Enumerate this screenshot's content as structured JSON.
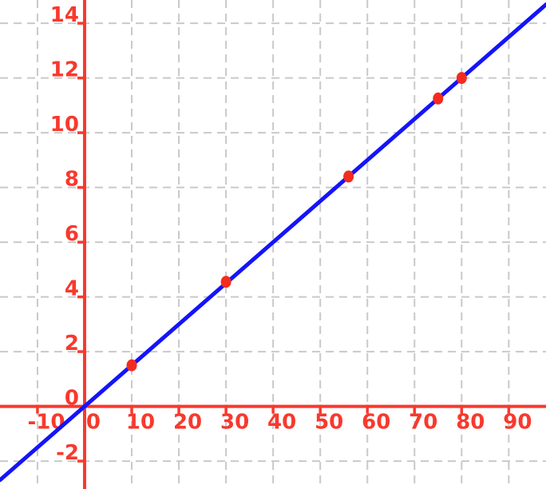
{
  "chart_data": {
    "type": "scatter",
    "title": "",
    "xlabel": "",
    "ylabel": "",
    "points": [
      {
        "x": 10,
        "y": 1.5
      },
      {
        "x": 30,
        "y": 4.55
      },
      {
        "x": 56,
        "y": 8.4
      },
      {
        "x": 75,
        "y": 11.25
      },
      {
        "x": 80,
        "y": 12.0
      }
    ],
    "trend_line": {
      "kind": "linear",
      "slope": 0.15,
      "intercept": 0,
      "equation": "y = 0.15x"
    },
    "x_ticks": [
      -10,
      0,
      10,
      20,
      30,
      40,
      50,
      60,
      70,
      80,
      90
    ],
    "y_ticks": [
      -2,
      0,
      2,
      4,
      6,
      8,
      10,
      12,
      14
    ],
    "xlim": [
      -17.95,
      97.9
    ],
    "ylim": [
      -3.02,
      14.85
    ],
    "grid": true,
    "grid_style": "dashed",
    "legend": "none",
    "axes_through_origin": true,
    "colors": {
      "axes": "#f8392d",
      "tick_labels": "#f8392d",
      "grid": "#c9c9c9",
      "trend_line": "#1414fa",
      "points": "#f32c1e",
      "background": "#ffffff"
    }
  }
}
